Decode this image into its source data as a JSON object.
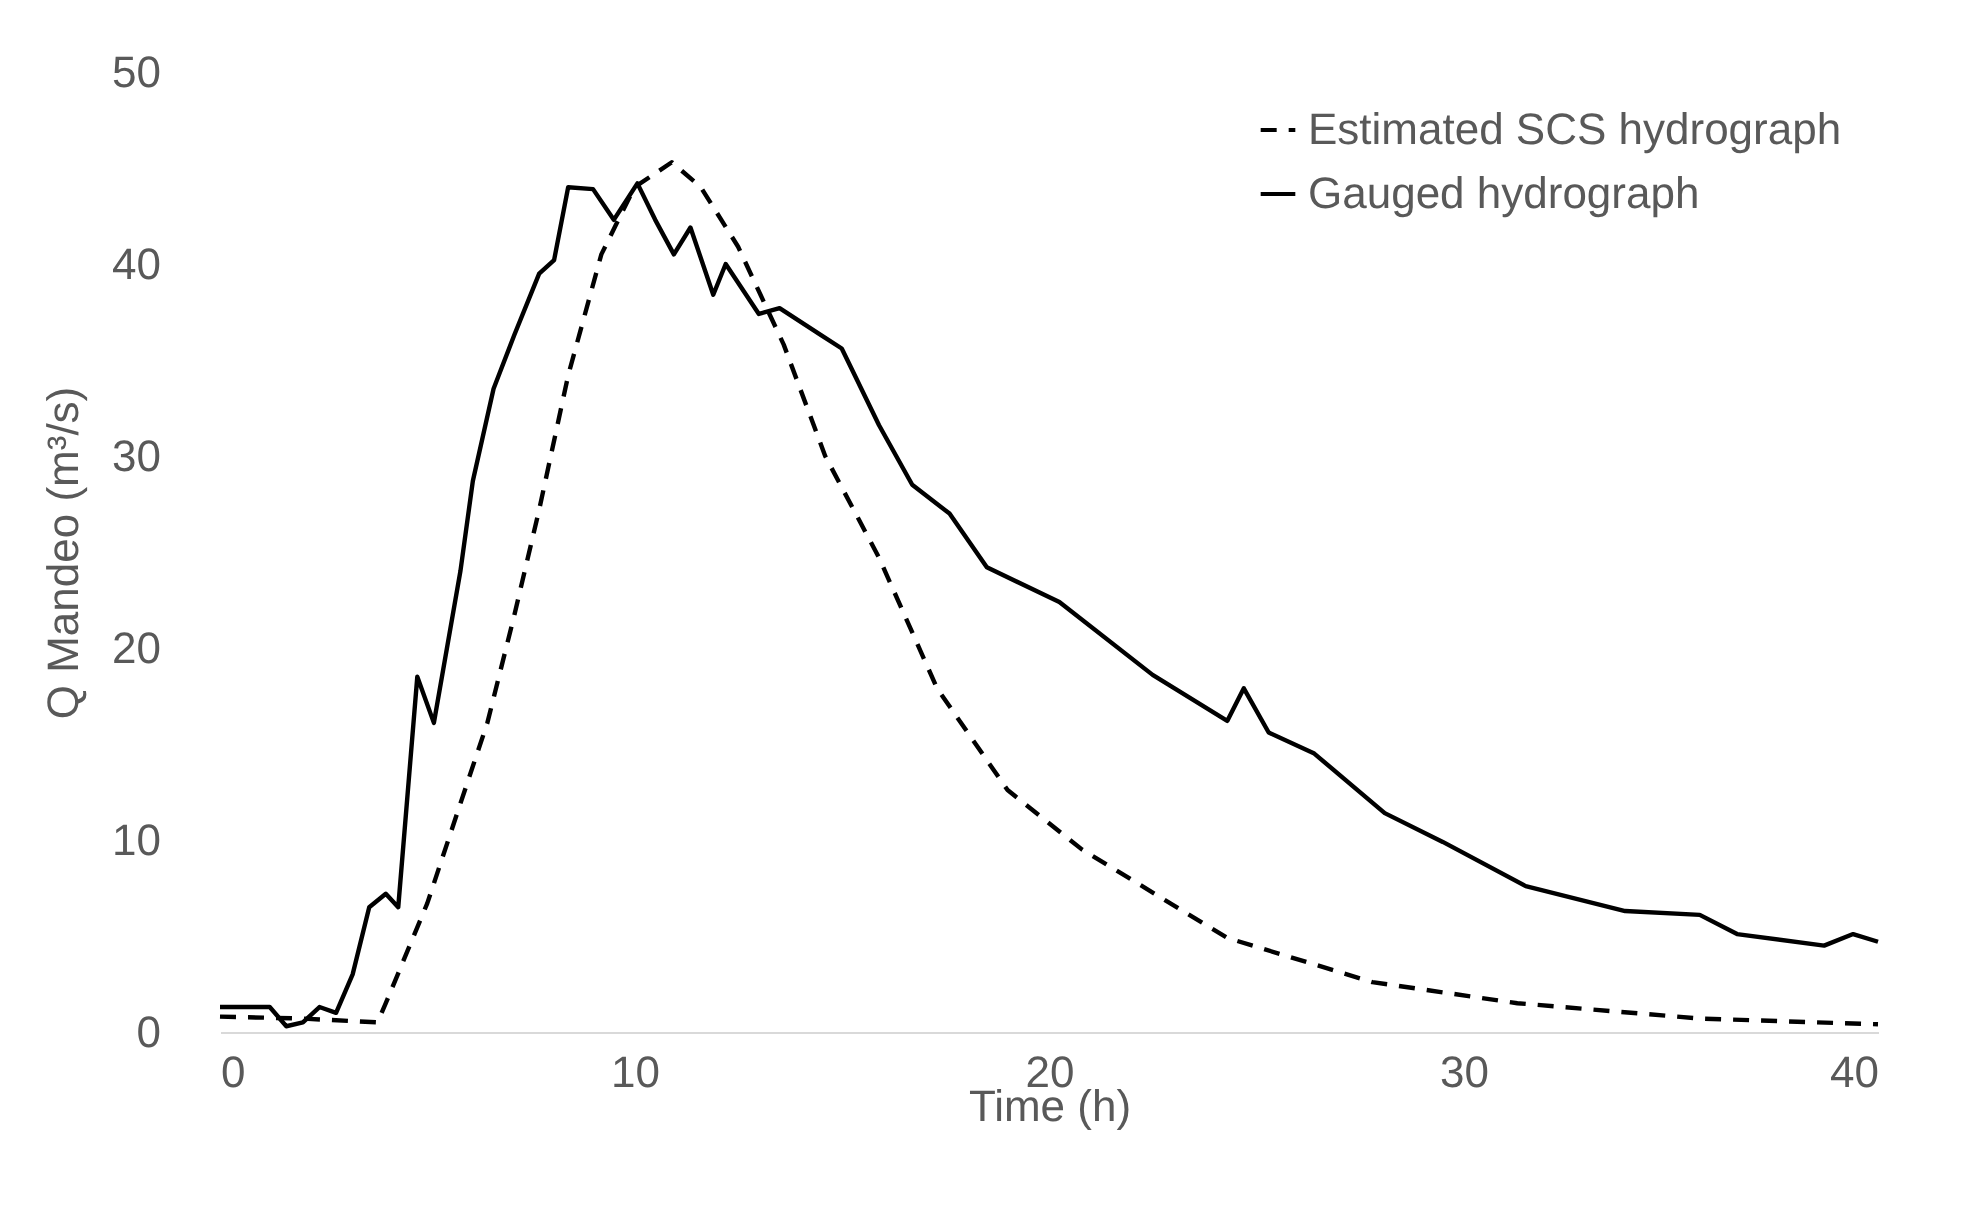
{
  "chart_data": {
    "type": "line",
    "xlabel": "Time (h)",
    "ylabel": "Q Mandeo (m³/s)",
    "xlim": [
      0,
      40
    ],
    "xticks": [
      0,
      10,
      20,
      30,
      40
    ],
    "ylim": [
      0,
      50
    ],
    "yticks": [
      0,
      10,
      20,
      30,
      40,
      50
    ],
    "grid": false,
    "legend": "top right",
    "series": [
      {
        "name": "Estimated SCS hydrograph",
        "color": "#000000",
        "line_style": "dashed",
        "x": [
          0,
          2,
          3.8,
          4.0,
          5.0,
          5.8,
          6.45,
          7.1,
          7.7,
          8.4,
          9.2,
          10.0,
          10.9,
          11.6,
          12.5,
          13.6,
          14.6,
          15.9,
          17.3,
          19.0,
          20.8,
          24.3,
          27.8,
          31.3,
          35.7,
          40
        ],
        "values": [
          0.8,
          0.7,
          0.5,
          1.5,
          6.7,
          11.9,
          16.1,
          21.7,
          27.2,
          34.2,
          40.5,
          44,
          45.3,
          44,
          40.9,
          35.8,
          30,
          24.7,
          17.9,
          12.6,
          9.5,
          4.9,
          2.6,
          1.5,
          0.7,
          0.4
        ]
      },
      {
        "name": "Gauged hydrograph",
        "color": "#000000",
        "line_style": "solid",
        "x": [
          0,
          1.2,
          1.6,
          2.0,
          2.4,
          2.8,
          3.2,
          3.6,
          4.0,
          4.3,
          4.76,
          5.16,
          5.8,
          6.1,
          6.6,
          7.1,
          7.7,
          8.06,
          8.4,
          9.0,
          9.5,
          10.07,
          10.5,
          10.95,
          11.35,
          11.9,
          12.2,
          13.0,
          13.5,
          14.5,
          15.0,
          15.9,
          16.7,
          17.6,
          18.5,
          20.25,
          22.5,
          24.3,
          24.7,
          25.3,
          26.4,
          28.1,
          29.5,
          31.5,
          33.9,
          35.7,
          36.6,
          38.7,
          39.4,
          40
        ],
        "values": [
          1.3,
          1.3,
          0.3,
          0.5,
          1.3,
          1.0,
          3,
          6.5,
          7.2,
          6.5,
          18.5,
          16.1,
          24,
          28.7,
          33.5,
          36.3,
          39.5,
          40.2,
          44,
          43.9,
          42.3,
          44.2,
          42.3,
          40.5,
          41.9,
          38.4,
          40,
          37.4,
          37.7,
          36.3,
          35.6,
          31.6,
          28.5,
          27,
          24.2,
          22.4,
          18.6,
          16.2,
          17.9,
          15.6,
          14.5,
          11.4,
          9.9,
          7.6,
          6.3,
          6.1,
          5.1,
          4.5,
          5.1,
          4.7
        ]
      }
    ]
  }
}
